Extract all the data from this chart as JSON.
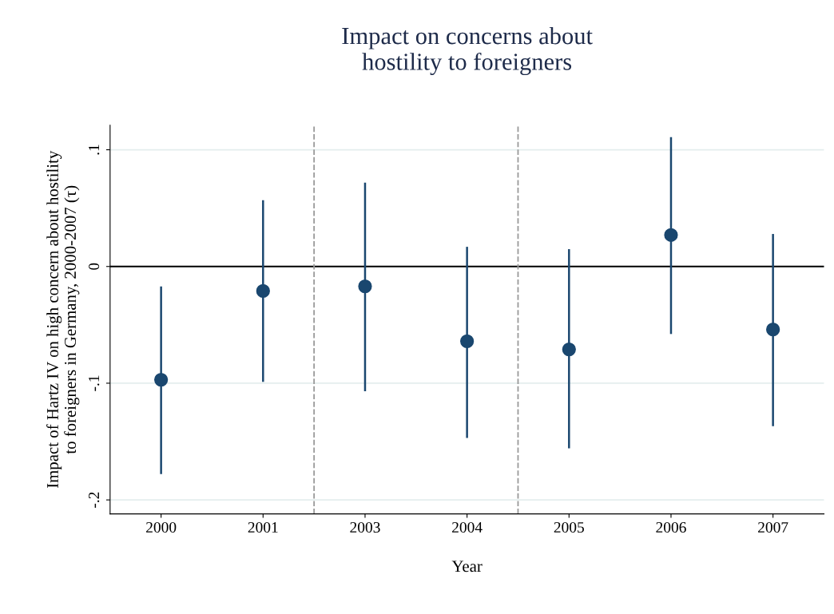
{
  "chart_data": {
    "type": "scatter",
    "title": "Impact on concerns about\nhostility to foreigners",
    "xlabel": "Year",
    "ylabel": "Impact of Hartz IV on high concern about hostility\nto foreigners in Germany, 2000-2007 (τ)",
    "categories": [
      "2000",
      "2001",
      "2003",
      "2004",
      "2005",
      "2006",
      "2007"
    ],
    "series": [
      {
        "color": "#1a476f",
        "values": [
          -0.097,
          -0.021,
          -0.017,
          -0.064,
          -0.071,
          0.027,
          -0.054
        ],
        "errors": [
          [
            -0.177,
            -0.018
          ],
          [
            -0.098,
            0.056
          ],
          [
            -0.106,
            0.071
          ],
          [
            -0.146,
            0.016
          ],
          [
            -0.155,
            0.014
          ],
          [
            -0.057,
            0.11
          ],
          [
            -0.136,
            0.027
          ]
        ]
      }
    ],
    "ylim": [
      -0.212,
      0.121
    ],
    "yticks": [
      {
        "value": -0.2,
        "label": "-.2"
      },
      {
        "value": -0.1,
        "label": "-.1"
      },
      {
        "value": 0,
        "label": "0"
      },
      {
        "value": 0.1,
        "label": ".1"
      }
    ],
    "ref_lines": [
      {
        "axis": "y",
        "value": 0,
        "color": "#000000",
        "line_style": "solid"
      }
    ],
    "grid": "y",
    "marker": "circle",
    "legend": false
  }
}
